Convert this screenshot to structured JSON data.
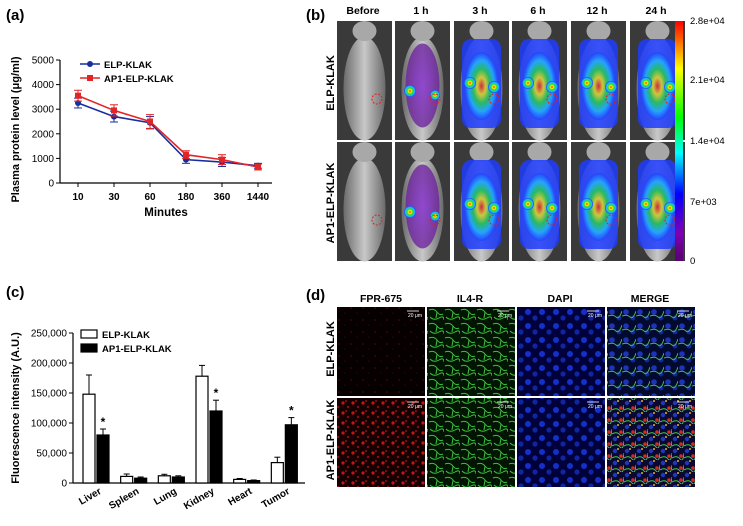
{
  "colors": {
    "elp_klak": "#1a2d9c",
    "ap1_elp_klak": "#e32525",
    "bar_light": "#ffffff",
    "bar_dark": "#000000",
    "colorbar_stops": [
      "#ff0000",
      "#ffff00",
      "#00ff00",
      "#00ffff",
      "#0000ff",
      "#7f00b2",
      "#5a0070"
    ]
  },
  "panel_a": {
    "label": "(a)",
    "legend": [
      "ELP-KLAK",
      "AP1-ELP-KLAK"
    ]
  },
  "panel_b": {
    "label": "(b)",
    "timepoints": [
      "Before",
      "1 h",
      "3 h",
      "6 h",
      "12 h",
      "24 h"
    ],
    "rows": [
      "ELP-KLAK",
      "AP1-ELP-KLAK"
    ],
    "colorbar_ticks": [
      "2.8e+04",
      "2.1e+04",
      "1.4e+04",
      "7e+03",
      "0"
    ]
  },
  "panel_c": {
    "label": "(c)",
    "legend": [
      "ELP-KLAK",
      "AP1-ELP-KLAK"
    ]
  },
  "panel_d": {
    "label": "(d)",
    "columns": [
      "FPR-675",
      "IL4-R",
      "DAPI",
      "MERGE"
    ],
    "rows": [
      "ELP-KLAK",
      "AP1-ELP-KLAK"
    ],
    "scale_bar": "20 μm"
  },
  "chart_data": [
    {
      "type": "line",
      "panel": "a",
      "categories": [
        "10",
        "30",
        "60",
        "180",
        "360",
        "1440"
      ],
      "series": [
        {
          "name": "ELP-KLAK",
          "values": [
            3250,
            2700,
            2450,
            950,
            850,
            700
          ],
          "errors": [
            200,
            220,
            250,
            150,
            180,
            100
          ]
        },
        {
          "name": "AP1-ELP-KLAK",
          "values": [
            3550,
            2950,
            2500,
            1150,
            950,
            650
          ],
          "errors": [
            220,
            230,
            280,
            160,
            200,
            120
          ]
        }
      ],
      "xlabel": "Minutes",
      "ylabel": "Plasma protein level (μg/ml)",
      "ylim": [
        0,
        5000
      ],
      "yticks": [
        0,
        1000,
        2000,
        3000,
        4000,
        5000
      ]
    },
    {
      "type": "bar",
      "panel": "c",
      "categories": [
        "Liver",
        "Spleen",
        "Lung",
        "Kidney",
        "Heart",
        "Tumor"
      ],
      "series": [
        {
          "name": "ELP-KLAK",
          "values": [
            148000,
            11000,
            12000,
            178000,
            6000,
            34000
          ],
          "errors": [
            32000,
            4000,
            2500,
            18000,
            1500,
            9000
          ]
        },
        {
          "name": "AP1-ELP-KLAK",
          "values": [
            80000,
            8000,
            10000,
            120000,
            4000,
            97000
          ],
          "errors": [
            10000,
            2000,
            2000,
            18000,
            1000,
            12000
          ]
        }
      ],
      "significance": [
        "*",
        "",
        "",
        "*",
        "",
        "*"
      ],
      "ylabel": "Fluorescence intensity (A.U.)",
      "ylim": [
        0,
        250000
      ],
      "yticks": [
        "0",
        "50,000",
        "100,000",
        "150,000",
        "200,000",
        "250,000"
      ]
    }
  ]
}
